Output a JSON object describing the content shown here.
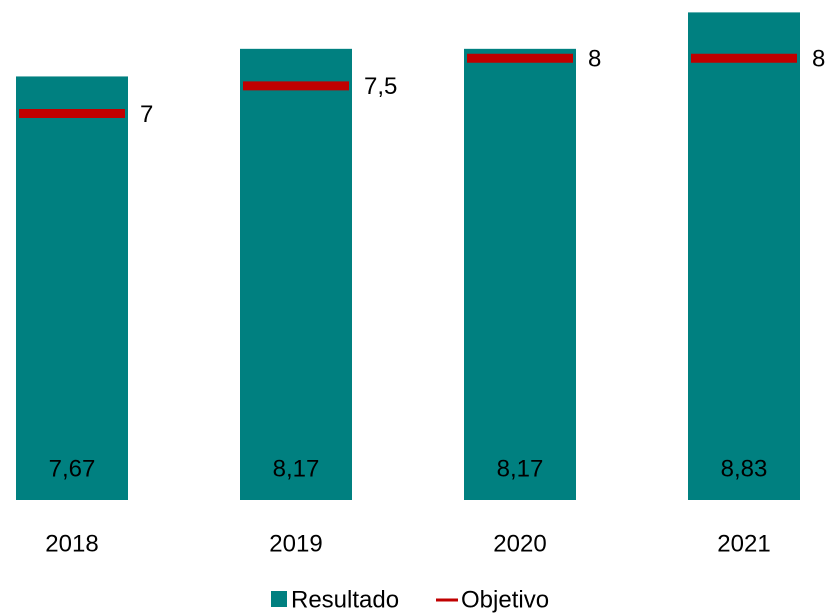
{
  "chart_data": {
    "type": "bar",
    "categories": [
      "2018",
      "2019",
      "2020",
      "2021"
    ],
    "series": [
      {
        "name": "Resultado",
        "color": "#008080",
        "values": [
          7.67,
          8.17,
          8.17,
          8.83
        ],
        "value_labels": [
          "7,67",
          "8,17",
          "8,17",
          "8,83"
        ]
      },
      {
        "name": "Objetivo",
        "color": "#c00000",
        "values": [
          7,
          7.5,
          8,
          8
        ],
        "value_labels": [
          "7",
          "7,5",
          "8",
          "8"
        ]
      }
    ],
    "ylim": [
      0,
      9
    ]
  }
}
